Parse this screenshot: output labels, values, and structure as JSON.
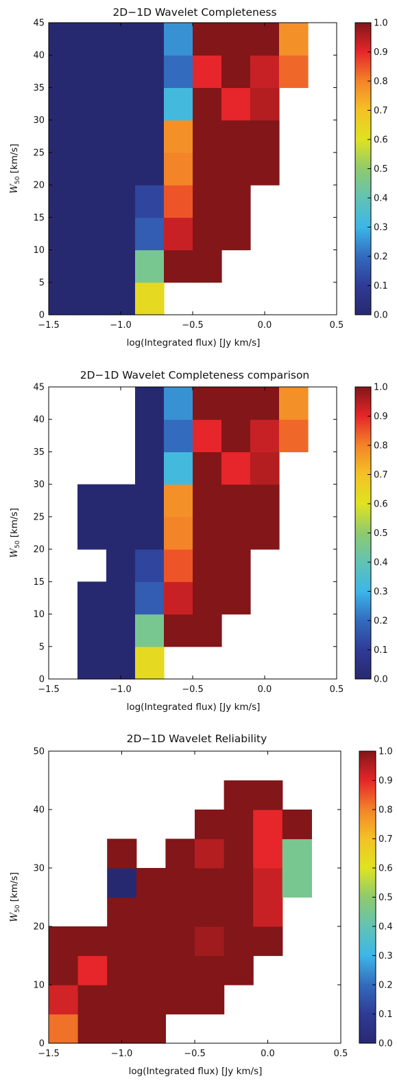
{
  "colorbar_ticks": [
    "0.0",
    "0.1",
    "0.2",
    "0.3",
    "0.4",
    "0.5",
    "0.6",
    "0.7",
    "0.8",
    "0.9",
    "1.0"
  ],
  "chart_data": [
    {
      "type": "heatmap",
      "title": "2D−1D Wavelet Completeness",
      "xlabel": "log(Integrated flux) [Jy km/s]",
      "ylabel": "W50 [km/s]",
      "xlim": [
        -1.5,
        0.5
      ],
      "ylim": [
        0,
        45
      ],
      "xticks": [
        -1.5,
        -1.0,
        -0.5,
        0.0,
        0.5
      ],
      "xtick_labels": [
        "−1.5",
        "−1.0",
        "−0.5",
        "0.0",
        "0.5"
      ],
      "yticks": [
        0,
        5,
        10,
        15,
        20,
        25,
        30,
        35,
        40,
        45
      ],
      "ytick_labels": [
        "0",
        "5",
        "10",
        "15",
        "20",
        "25",
        "30",
        "35",
        "40",
        "45"
      ],
      "x_bin_width": 0.2,
      "y_bin_width": 5,
      "value_range": [
        0,
        1
      ],
      "cells": [
        [
          -1.5,
          0,
          0
        ],
        [
          -1.3,
          0,
          0
        ],
        [
          -1.1,
          0,
          0
        ],
        [
          -0.9,
          0,
          0.63
        ],
        [
          -1.5,
          5,
          0
        ],
        [
          -1.3,
          5,
          0
        ],
        [
          -1.1,
          5,
          0
        ],
        [
          -0.9,
          5,
          0.45
        ],
        [
          -0.7,
          5,
          1
        ],
        [
          -0.5,
          5,
          1
        ],
        [
          -1.5,
          10,
          0
        ],
        [
          -1.3,
          10,
          0
        ],
        [
          -1.1,
          10,
          0
        ],
        [
          -0.9,
          10,
          0.17
        ],
        [
          -0.7,
          10,
          0.93
        ],
        [
          -0.5,
          10,
          1
        ],
        [
          -0.3,
          10,
          1
        ],
        [
          -1.5,
          15,
          0
        ],
        [
          -1.3,
          15,
          0
        ],
        [
          -1.1,
          15,
          0
        ],
        [
          -0.9,
          15,
          0.12
        ],
        [
          -0.7,
          15,
          0.85
        ],
        [
          -0.5,
          15,
          1
        ],
        [
          -0.3,
          15,
          1
        ],
        [
          -1.5,
          20,
          0
        ],
        [
          -1.3,
          20,
          0
        ],
        [
          -1.1,
          20,
          0
        ],
        [
          -0.9,
          20,
          0
        ],
        [
          -0.7,
          20,
          0.8
        ],
        [
          -0.5,
          20,
          1
        ],
        [
          -0.3,
          20,
          1
        ],
        [
          -0.1,
          20,
          1
        ],
        [
          -1.5,
          25,
          0
        ],
        [
          -1.3,
          25,
          0
        ],
        [
          -1.1,
          25,
          0
        ],
        [
          -0.9,
          25,
          0
        ],
        [
          -0.7,
          25,
          0.78
        ],
        [
          -0.5,
          25,
          1
        ],
        [
          -0.3,
          25,
          1
        ],
        [
          -0.1,
          25,
          1
        ],
        [
          -1.5,
          30,
          0
        ],
        [
          -1.3,
          30,
          0
        ],
        [
          -1.1,
          30,
          0
        ],
        [
          -0.9,
          30,
          0
        ],
        [
          -0.7,
          30,
          0.32
        ],
        [
          -0.5,
          30,
          1
        ],
        [
          -0.3,
          30,
          0.9
        ],
        [
          -0.1,
          30,
          0.95
        ],
        [
          -1.5,
          35,
          0
        ],
        [
          -1.3,
          35,
          0
        ],
        [
          -1.1,
          35,
          0
        ],
        [
          -0.9,
          35,
          0
        ],
        [
          -0.7,
          35,
          0.2
        ],
        [
          -0.5,
          35,
          0.9
        ],
        [
          -0.3,
          35,
          1
        ],
        [
          -0.1,
          35,
          0.93
        ],
        [
          0.1,
          35,
          0.83
        ],
        [
          -1.5,
          40,
          0
        ],
        [
          -1.3,
          40,
          0
        ],
        [
          -1.1,
          40,
          0
        ],
        [
          -0.9,
          40,
          0
        ],
        [
          -0.7,
          40,
          0.25
        ],
        [
          -0.5,
          40,
          1
        ],
        [
          -0.3,
          40,
          1
        ],
        [
          -0.1,
          40,
          1
        ],
        [
          0.1,
          40,
          0.78
        ]
      ]
    },
    {
      "type": "heatmap",
      "title": "2D−1D Wavelet Completeness comparison",
      "xlabel": "log(Integrated flux) [Jy km/s]",
      "ylabel": "W50 [km/s]",
      "xlim": [
        -1.5,
        0.5
      ],
      "ylim": [
        0,
        45
      ],
      "xticks": [
        -1.5,
        -1.0,
        -0.5,
        0.0,
        0.5
      ],
      "xtick_labels": [
        "−1.5",
        "−1.0",
        "−0.5",
        "0.0",
        "0.5"
      ],
      "yticks": [
        0,
        5,
        10,
        15,
        20,
        25,
        30,
        35,
        40,
        45
      ],
      "ytick_labels": [
        "0",
        "5",
        "10",
        "15",
        "20",
        "25",
        "30",
        "35",
        "40",
        "45"
      ],
      "x_bin_width": 0.2,
      "y_bin_width": 5,
      "value_range": [
        0,
        1
      ],
      "cells": [
        [
          -1.3,
          0,
          0
        ],
        [
          -1.1,
          0,
          0
        ],
        [
          -0.9,
          0,
          0.63
        ],
        [
          -1.3,
          5,
          0
        ],
        [
          -1.1,
          5,
          0
        ],
        [
          -0.9,
          5,
          0.45
        ],
        [
          -0.7,
          5,
          1
        ],
        [
          -0.5,
          5,
          1
        ],
        [
          -1.3,
          10,
          0
        ],
        [
          -1.1,
          10,
          0
        ],
        [
          -0.9,
          10,
          0.17
        ],
        [
          -0.7,
          10,
          0.93
        ],
        [
          -0.5,
          10,
          1
        ],
        [
          -0.3,
          10,
          1
        ],
        [
          -1.1,
          15,
          0
        ],
        [
          -0.9,
          15,
          0.12
        ],
        [
          -0.7,
          15,
          0.85
        ],
        [
          -0.5,
          15,
          1
        ],
        [
          -0.3,
          15,
          1
        ],
        [
          -1.3,
          20,
          0
        ],
        [
          -1.1,
          20,
          0
        ],
        [
          -0.9,
          20,
          0
        ],
        [
          -0.7,
          20,
          0.8
        ],
        [
          -0.5,
          20,
          1
        ],
        [
          -0.3,
          20,
          1
        ],
        [
          -0.1,
          20,
          1
        ],
        [
          -1.3,
          25,
          0
        ],
        [
          -1.1,
          25,
          0
        ],
        [
          -0.9,
          25,
          0
        ],
        [
          -0.7,
          25,
          0.78
        ],
        [
          -0.5,
          25,
          1
        ],
        [
          -0.3,
          25,
          1
        ],
        [
          -0.1,
          25,
          1
        ],
        [
          -0.9,
          30,
          0
        ],
        [
          -0.7,
          30,
          0.32
        ],
        [
          -0.5,
          30,
          1
        ],
        [
          -0.3,
          30,
          0.9
        ],
        [
          -0.1,
          30,
          0.95
        ],
        [
          -0.9,
          35,
          0
        ],
        [
          -0.7,
          35,
          0.2
        ],
        [
          -0.5,
          35,
          0.9
        ],
        [
          -0.3,
          35,
          1
        ],
        [
          -0.1,
          35,
          0.93
        ],
        [
          0.1,
          35,
          0.83
        ],
        [
          -0.9,
          40,
          0
        ],
        [
          -0.7,
          40,
          0.25
        ],
        [
          -0.5,
          40,
          1
        ],
        [
          -0.3,
          40,
          1
        ],
        [
          -0.1,
          40,
          1
        ],
        [
          0.1,
          40,
          0.78
        ]
      ]
    },
    {
      "type": "heatmap",
      "title": "2D−1D Wavelet Reliability",
      "xlabel": "log(Integrated flux) [Jy km/s]",
      "ylabel": "W50 [km/s]",
      "xlim": [
        -1.5,
        0.5
      ],
      "ylim": [
        0,
        50
      ],
      "xticks": [
        -1.5,
        -1.0,
        -0.5,
        0.0,
        0.5
      ],
      "xtick_labels": [
        "−1.5",
        "−1.0",
        "−0.5",
        "0.0",
        "0.5"
      ],
      "yticks": [
        0,
        10,
        20,
        30,
        40,
        50
      ],
      "ytick_labels": [
        "0",
        "10",
        "20",
        "30",
        "40",
        "50"
      ],
      "x_bin_width": 0.2,
      "y_bin_width": 5,
      "value_range": [
        0,
        1
      ],
      "cells": [
        [
          -1.5,
          0,
          0.82
        ],
        [
          -1.3,
          0,
          1
        ],
        [
          -1.1,
          0,
          1
        ],
        [
          -0.9,
          0,
          1
        ],
        [
          -1.5,
          5,
          0.92
        ],
        [
          -1.3,
          5,
          1
        ],
        [
          -1.1,
          5,
          1
        ],
        [
          -0.9,
          5,
          1
        ],
        [
          -0.7,
          5,
          1
        ],
        [
          -0.5,
          5,
          1
        ],
        [
          -1.5,
          10,
          1
        ],
        [
          -1.3,
          10,
          0.9
        ],
        [
          -1.1,
          10,
          1
        ],
        [
          -0.9,
          10,
          1
        ],
        [
          -0.7,
          10,
          1
        ],
        [
          -0.5,
          10,
          1
        ],
        [
          -0.3,
          10,
          1
        ],
        [
          -1.5,
          15,
          1
        ],
        [
          -1.3,
          15,
          1
        ],
        [
          -1.1,
          15,
          1
        ],
        [
          -0.9,
          15,
          1
        ],
        [
          -0.7,
          15,
          1
        ],
        [
          -0.5,
          15,
          0.97
        ],
        [
          -0.3,
          15,
          1
        ],
        [
          -0.1,
          15,
          1
        ],
        [
          -1.1,
          20,
          1
        ],
        [
          -0.9,
          20,
          1
        ],
        [
          -0.7,
          20,
          1
        ],
        [
          -0.5,
          20,
          1
        ],
        [
          -0.3,
          20,
          1
        ],
        [
          -0.1,
          20,
          0.93
        ],
        [
          -1.1,
          25,
          0
        ],
        [
          -0.9,
          25,
          1
        ],
        [
          -0.7,
          25,
          1
        ],
        [
          -0.5,
          25,
          1
        ],
        [
          -0.3,
          25,
          1
        ],
        [
          -0.1,
          25,
          0.93
        ],
        [
          0.1,
          25,
          0.45
        ],
        [
          -1.1,
          30,
          1
        ],
        [
          -0.7,
          30,
          1
        ],
        [
          -0.5,
          30,
          0.95
        ],
        [
          -0.3,
          30,
          1
        ],
        [
          -0.1,
          30,
          0.9
        ],
        [
          0.1,
          30,
          0.45
        ],
        [
          -0.5,
          35,
          1
        ],
        [
          -0.3,
          35,
          1
        ],
        [
          -0.1,
          35,
          0.9
        ],
        [
          0.1,
          35,
          1
        ],
        [
          -0.3,
          40,
          1
        ],
        [
          -0.1,
          40,
          1
        ]
      ]
    }
  ]
}
